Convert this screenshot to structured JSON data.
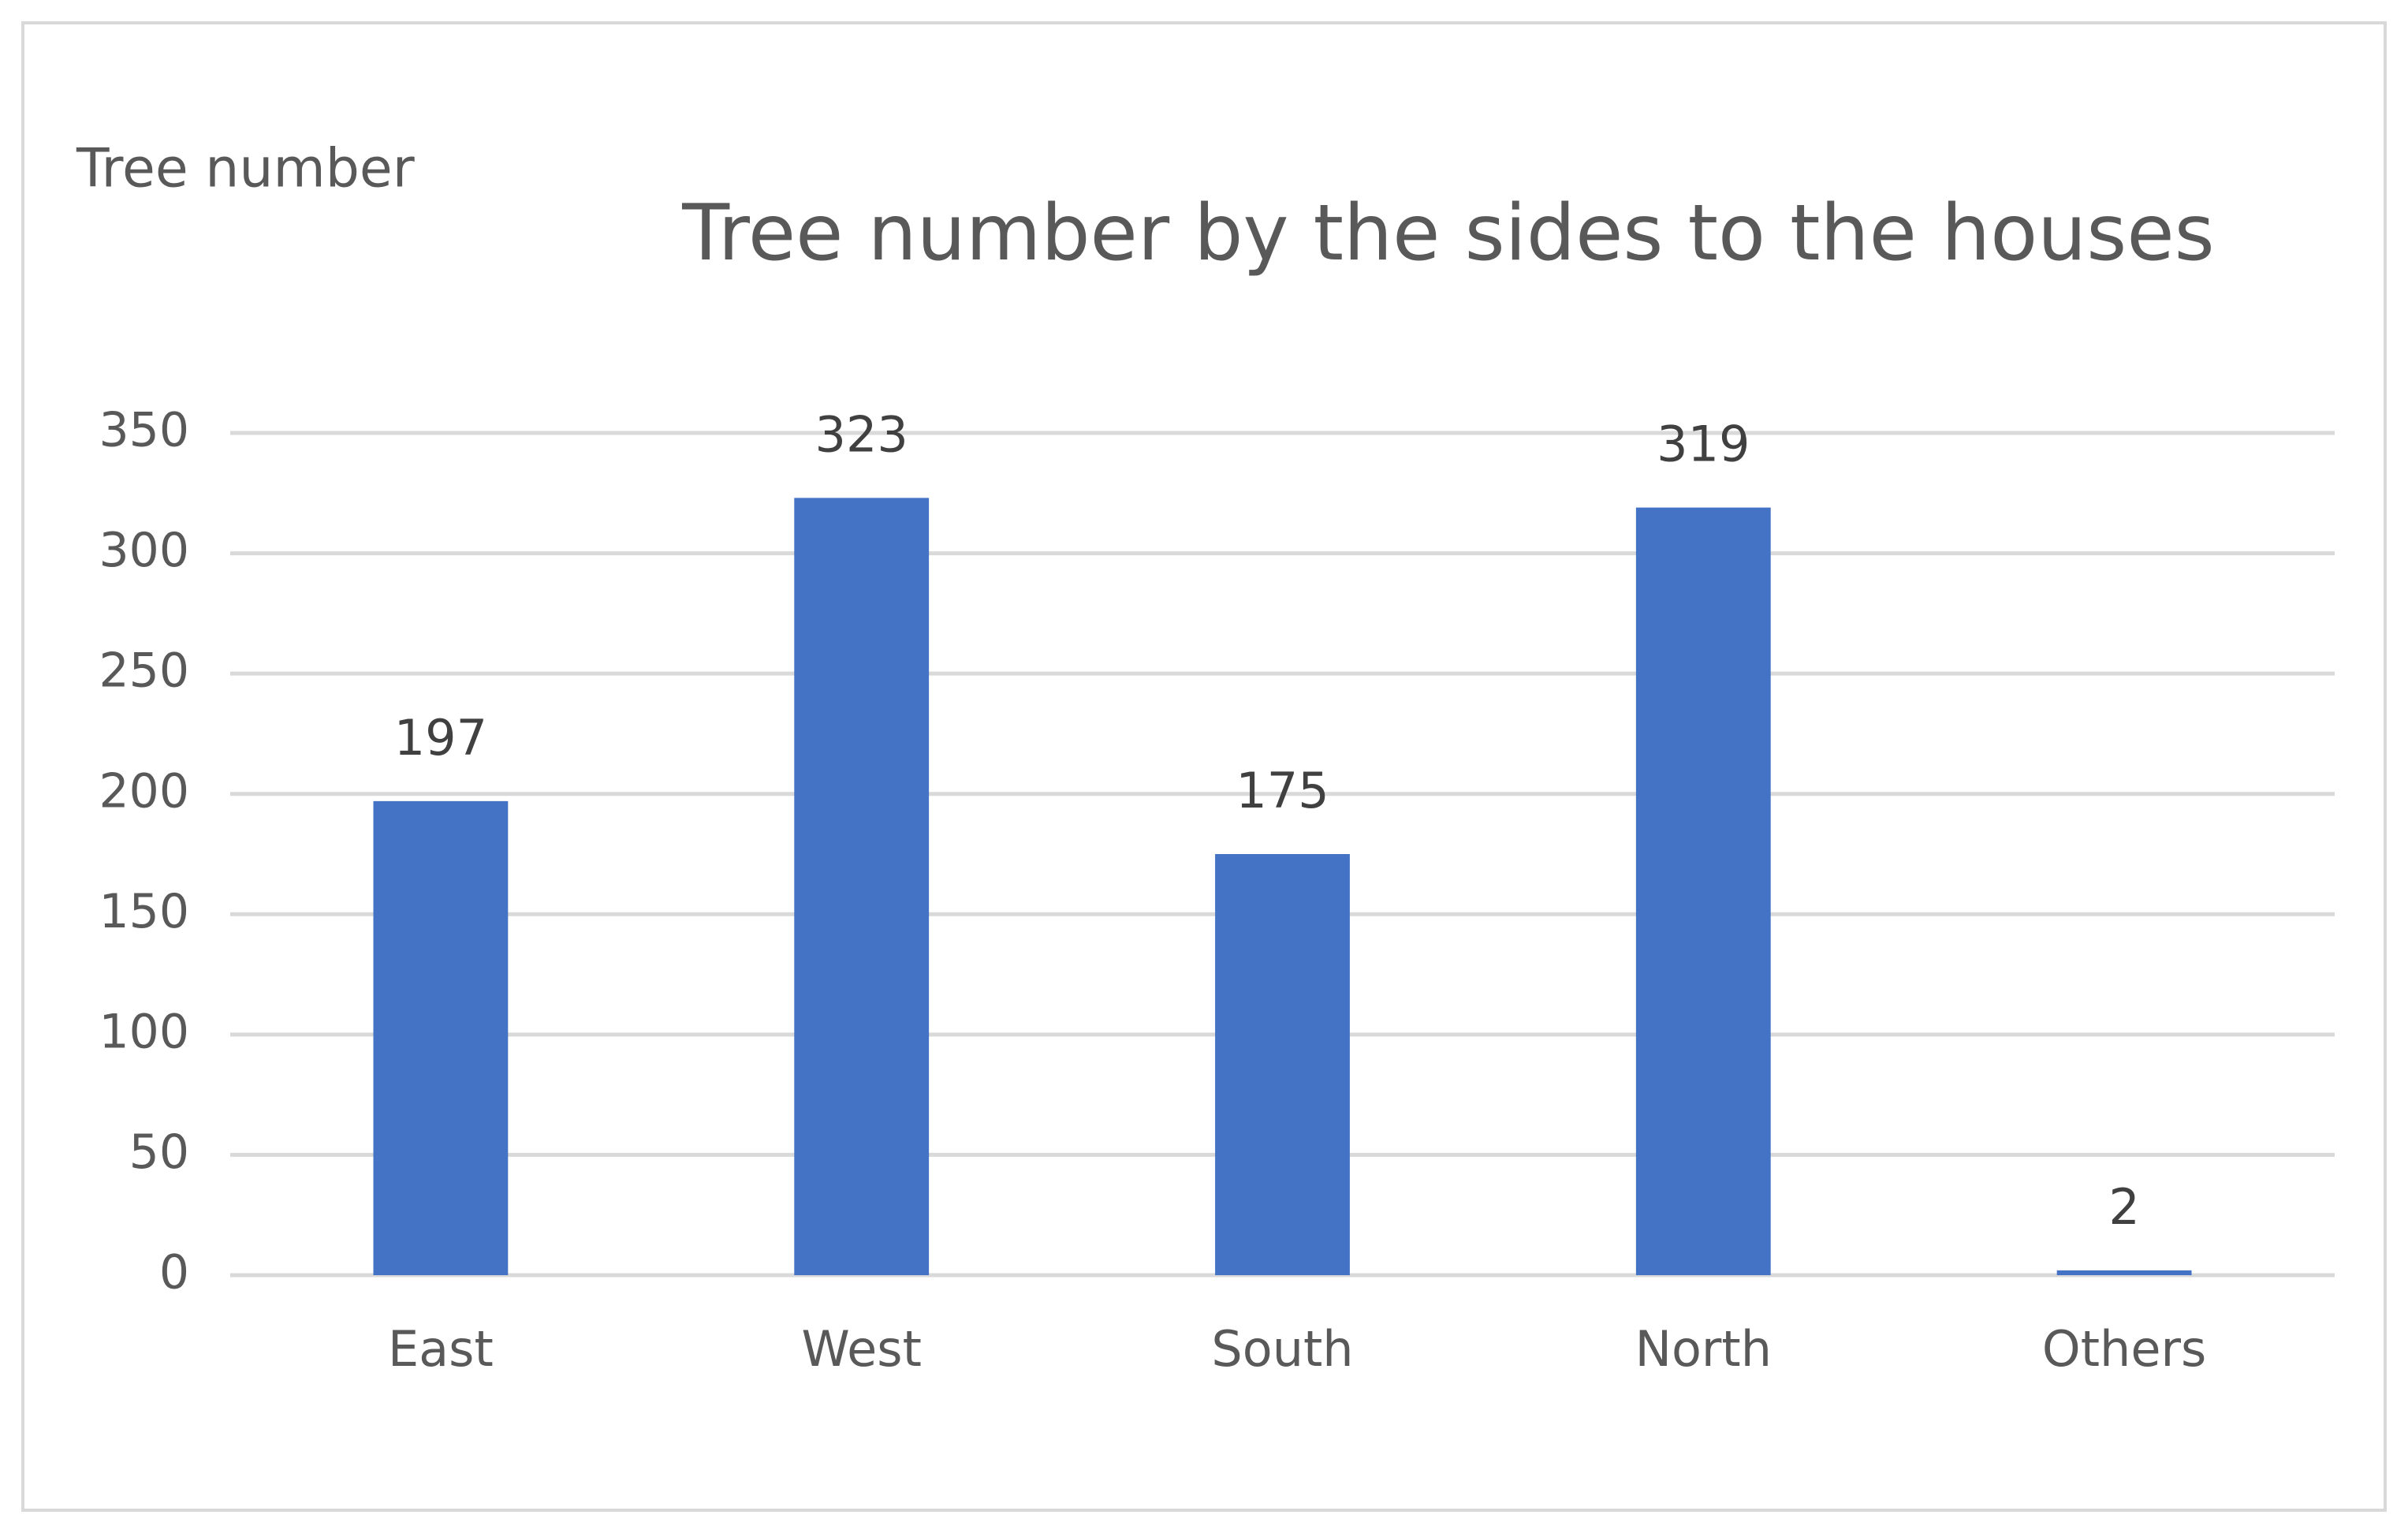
{
  "chart_data": {
    "type": "bar",
    "title": "Tree number by the sides to the houses",
    "y_label": "Tree number",
    "categories": [
      "East",
      "West",
      "South",
      "North",
      "Others"
    ],
    "values": [
      197,
      323,
      175,
      319,
      2
    ],
    "color": "#4472c4",
    "ylim": [
      0,
      350
    ],
    "yticks": [
      0,
      50,
      100,
      150,
      200,
      250,
      300,
      350
    ],
    "grid": true,
    "data_labels": true
  }
}
